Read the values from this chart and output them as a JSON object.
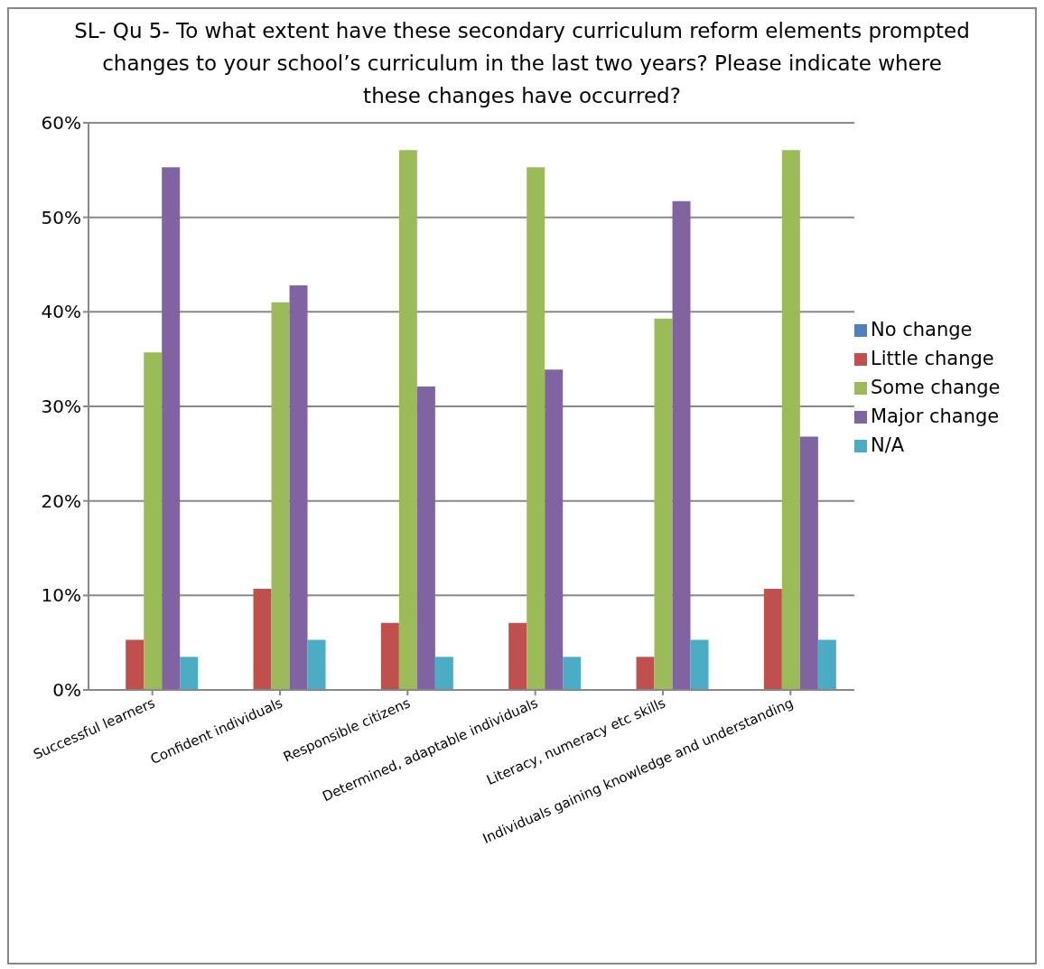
{
  "chart_data": {
    "type": "bar",
    "title": "SL- Qu 5- To what extent have these secondary curriculum reform elements prompted changes to your school’s curriculum in the last two years? Please indicate where these changes have occurred?",
    "categories": [
      "Successful learners",
      "Confident individuals",
      "Responsible citizens",
      "Determined, adaptable individuals",
      "Literacy, numeracy etc skills",
      "Individuals gaining knowledge and understanding"
    ],
    "series": [
      {
        "name": "No change",
        "color": "#4f81bd",
        "values": [
          0,
          0,
          0,
          0,
          0,
          0
        ]
      },
      {
        "name": "Little change",
        "color": "#c0504d",
        "values": [
          5.3,
          10.7,
          7.1,
          7.1,
          3.5,
          10.7
        ]
      },
      {
        "name": "Some change",
        "color": "#9bbb59",
        "values": [
          35.7,
          41.0,
          57.1,
          55.3,
          39.3,
          57.1
        ]
      },
      {
        "name": "Major change",
        "color": "#8064a2",
        "values": [
          55.3,
          42.8,
          32.1,
          33.9,
          51.7,
          26.8
        ]
      },
      {
        "name": "N/A",
        "color": "#4bacc6",
        "values": [
          3.5,
          5.3,
          3.5,
          3.5,
          5.3,
          5.3
        ]
      }
    ],
    "ylim": [
      0,
      60
    ],
    "yticks": [
      {
        "value": 0,
        "label": "0%"
      },
      {
        "value": 10,
        "label": "10%"
      },
      {
        "value": 20,
        "label": "20%"
      },
      {
        "value": 30,
        "label": "30%"
      },
      {
        "value": 40,
        "label": "40%"
      },
      {
        "value": 50,
        "label": "50%"
      },
      {
        "value": 60,
        "label": "60%"
      }
    ],
    "grid": "y",
    "legend": "right"
  }
}
